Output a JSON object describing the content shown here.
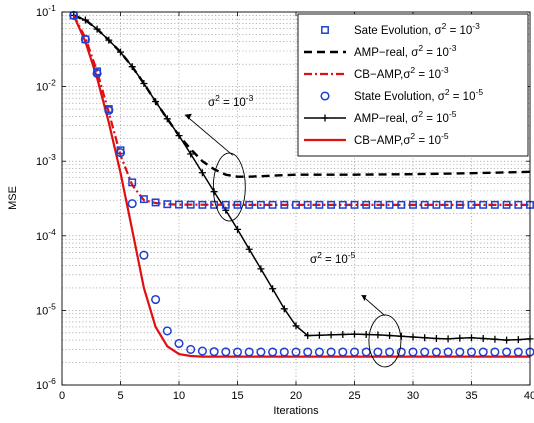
{
  "chart_data": {
    "type": "line",
    "xlabel": "Iterations",
    "ylabel": "MSE",
    "xlim": [
      0,
      40
    ],
    "ylim_log10": [
      -6,
      -1
    ],
    "y_scale": "log",
    "grid": true,
    "legend_position": "top-right",
    "x_ticks": [
      0,
      5,
      10,
      15,
      20,
      25,
      30,
      35,
      40
    ],
    "x_tick_labels": [
      "0",
      "5",
      "10",
      "15",
      "20",
      "25",
      "30",
      "35",
      "40"
    ],
    "y_ticks_exp": [
      -6,
      -5,
      -4,
      -3,
      -2,
      -1
    ],
    "y_tick_base": "10",
    "y_tick_exps": [
      "-6",
      "-5",
      "-4",
      "-3",
      "-2",
      "-1"
    ],
    "series": [
      {
        "name_main": "Sate Evolution, σ",
        "name_sup": "2",
        "name_tail": " = 10",
        "name_exp": "-3",
        "style": "square",
        "color": "#1f3fd0",
        "x": [
          1,
          2,
          3,
          4,
          5,
          6,
          7,
          8,
          9,
          10,
          11,
          12,
          13,
          14,
          15,
          16,
          17,
          18,
          19,
          20,
          21,
          22,
          23,
          24,
          25,
          26,
          27,
          28,
          29,
          30,
          31,
          32,
          33,
          34,
          35,
          36,
          37,
          38,
          39,
          40
        ],
        "y": [
          0.09,
          0.043,
          0.016,
          0.005,
          0.0014,
          0.00052,
          0.00031,
          0.00028,
          0.000265,
          0.000262,
          0.000261,
          0.00026,
          0.00026,
          0.00026,
          0.00026,
          0.00026,
          0.00026,
          0.00026,
          0.00026,
          0.00026,
          0.00026,
          0.00026,
          0.00026,
          0.00026,
          0.00026,
          0.00026,
          0.00026,
          0.00026,
          0.00026,
          0.00026,
          0.00026,
          0.00026,
          0.00026,
          0.00026,
          0.00026,
          0.00026,
          0.00026,
          0.00026,
          0.00026,
          0.00026
        ]
      },
      {
        "name_main": "AMP−real, σ",
        "name_sup": "2",
        "name_tail": " = 10",
        "name_exp": "-3",
        "style": "dashed",
        "color": "#000000",
        "x": [
          1,
          2,
          3,
          4,
          5,
          6,
          7,
          8,
          9,
          10,
          11,
          12,
          13,
          14,
          15,
          16,
          17,
          18,
          19,
          20,
          25,
          30,
          35,
          40
        ],
        "y": [
          0.09,
          0.078,
          0.059,
          0.042,
          0.029,
          0.0185,
          0.011,
          0.0063,
          0.0037,
          0.0022,
          0.00145,
          0.001,
          0.00078,
          0.00066,
          0.00062,
          0.00062,
          0.00063,
          0.00064,
          0.00065,
          0.00066,
          0.00066,
          0.00067,
          0.00069,
          0.00072
        ]
      },
      {
        "name_main": "CB−AMP,σ",
        "name_sup": "2",
        "name_tail": " = 10",
        "name_exp": "-3",
        "style": "dashdot",
        "color": "#e01010",
        "x": [
          1,
          2,
          3,
          4,
          5,
          6,
          7,
          8,
          9,
          10,
          15,
          20,
          25,
          30,
          35,
          40
        ],
        "y": [
          0.09,
          0.045,
          0.016,
          0.0045,
          0.0012,
          0.00048,
          0.0003,
          0.000275,
          0.000265,
          0.000262,
          0.00026,
          0.00026,
          0.00026,
          0.00026,
          0.00026,
          0.00026
        ]
      },
      {
        "name_main": "State Evolution, σ",
        "name_sup": "2",
        "name_tail": " = 10",
        "name_exp": "-5",
        "style": "circle",
        "color": "#1f3fd0",
        "x": [
          1,
          2,
          3,
          4,
          5,
          6,
          7,
          8,
          9,
          10,
          11,
          12,
          13,
          14,
          15,
          16,
          17,
          18,
          19,
          20,
          21,
          22,
          23,
          24,
          25,
          26,
          27,
          28,
          29,
          30,
          31,
          32,
          33,
          34,
          35,
          36,
          37,
          38,
          39,
          40
        ],
        "y": [
          0.09,
          0.043,
          0.015,
          0.0048,
          0.0013,
          0.00027,
          5.5e-05,
          1.4e-05,
          5.3e-06,
          3.6e-06,
          3e-06,
          2.85e-06,
          2.8e-06,
          2.78e-06,
          2.77e-06,
          2.77e-06,
          2.77e-06,
          2.77e-06,
          2.77e-06,
          2.77e-06,
          2.77e-06,
          2.77e-06,
          2.77e-06,
          2.77e-06,
          2.77e-06,
          2.77e-06,
          2.77e-06,
          2.77e-06,
          2.77e-06,
          2.77e-06,
          2.77e-06,
          2.77e-06,
          2.77e-06,
          2.77e-06,
          2.77e-06,
          2.77e-06,
          2.77e-06,
          2.77e-06,
          2.77e-06,
          2.77e-06
        ]
      },
      {
        "name_main": "AMP−real, σ",
        "name_sup": "2",
        "name_tail": " = 10",
        "name_exp": "-5",
        "style": "plus",
        "color": "#000000",
        "x": [
          1,
          2,
          3,
          4,
          5,
          6,
          7,
          8,
          9,
          10,
          11,
          12,
          13,
          14,
          15,
          16,
          17,
          18,
          19,
          20,
          21,
          22,
          23,
          24,
          25,
          26,
          27,
          28,
          29,
          30,
          31,
          32,
          33,
          34,
          35,
          36,
          37,
          38,
          39,
          40
        ],
        "y": [
          0.09,
          0.078,
          0.059,
          0.042,
          0.029,
          0.0185,
          0.011,
          0.0063,
          0.0037,
          0.0022,
          0.00125,
          0.0007,
          0.00039,
          0.00022,
          0.000122,
          6.6e-05,
          3.6e-05,
          1.95e-05,
          1.05e-05,
          6.2e-06,
          4.6e-06,
          4.65e-06,
          4.7e-06,
          4.75e-06,
          4.8e-06,
          4.75e-06,
          4.7e-06,
          4.6e-06,
          4.5e-06,
          4.4e-06,
          4.3e-06,
          4.2e-06,
          4.15e-06,
          4.25e-06,
          4.3e-06,
          4.2e-06,
          4.1e-06,
          4e-06,
          4.05e-06,
          4.15e-06
        ]
      },
      {
        "name_main": "CB−AMP,σ",
        "name_sup": "2",
        "name_tail": " = 10",
        "name_exp": "-5",
        "style": "solid",
        "color": "#e01010",
        "x": [
          1,
          2,
          3,
          4,
          5,
          6,
          7,
          8,
          9,
          10,
          11,
          12,
          15,
          20,
          25,
          30,
          35,
          40
        ],
        "y": [
          0.09,
          0.04,
          0.013,
          0.0033,
          0.0007,
          0.00012,
          2e-05,
          6e-06,
          3.3e-06,
          2.6e-06,
          2.45e-06,
          2.4e-06,
          2.4e-06,
          2.4e-06,
          2.4e-06,
          2.4e-06,
          2.4e-06,
          2.4e-06
        ]
      }
    ],
    "annotations": [
      {
        "id": "high",
        "text_main": "σ",
        "text_sup": "2",
        "text_tail": " = 10",
        "text_exp": "-3"
      },
      {
        "id": "low",
        "text_main": "σ",
        "text_sup": "2",
        "text_tail": " = 10",
        "text_exp": "-5"
      }
    ]
  }
}
